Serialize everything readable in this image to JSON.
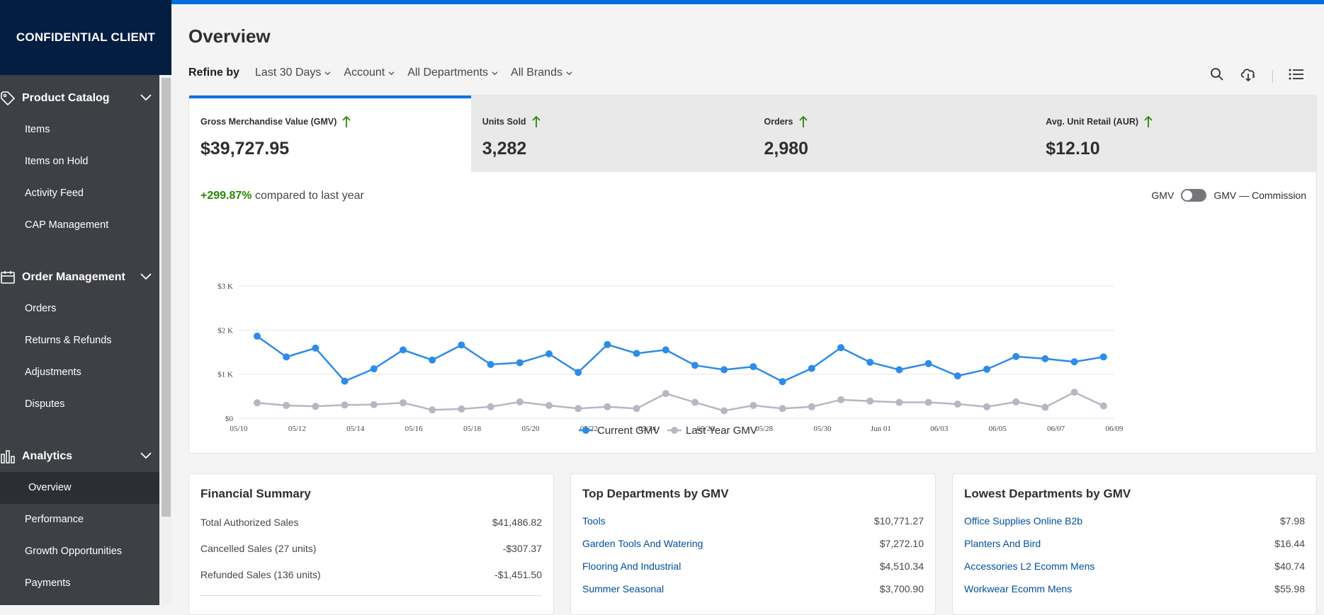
{
  "sidebar": {
    "brand": "CONFIDENTIAL CLIENT",
    "sections": [
      {
        "label": "Product Catalog",
        "icon": "tag-icon",
        "items": [
          "Items",
          "Items on Hold",
          "Activity Feed",
          "CAP Management"
        ]
      },
      {
        "label": "Order Management",
        "icon": "calendar-icon",
        "items": [
          "Orders",
          "Returns & Refunds",
          "Adjustments",
          "Disputes"
        ]
      },
      {
        "label": "Analytics",
        "icon": "bar-chart-icon",
        "items": [
          "Overview",
          "Performance",
          "Growth Opportunities",
          "Payments"
        ],
        "active": "Overview"
      }
    ]
  },
  "header": {
    "title": "Overview",
    "refine_label": "Refine by",
    "filters": [
      "Last 30 Days",
      "Account",
      "All Departments",
      "All Brands"
    ],
    "tools": [
      "search-icon",
      "cloud-download-icon",
      "list-icon"
    ]
  },
  "metrics": [
    {
      "label": "Gross Merchandise Value (GMV)",
      "value": "$39,727.95",
      "trend": "up"
    },
    {
      "label": "Units Sold",
      "value": "3,282",
      "trend": "up"
    },
    {
      "label": "Orders",
      "value": "2,980",
      "trend": "up"
    },
    {
      "label": "Avg. Unit Retail (AUR)",
      "value": "$12.10",
      "trend": "up"
    }
  ],
  "comparison": {
    "pct": "+299.87%",
    "text": "compared to last year"
  },
  "toggle": {
    "left": "GMV",
    "right": "GMV — Commission"
  },
  "chart_data": {
    "type": "line",
    "y_ticks": [
      "$0",
      "$1 K",
      "$2 K",
      "$3 K"
    ],
    "ylim": [
      0,
      3000
    ],
    "x_ticks": [
      "05/10",
      "05/12",
      "05/14",
      "05/16",
      "05/18",
      "05/20",
      "05/22",
      "05/24",
      "05/26",
      "05/28",
      "05/30",
      "Jun 01",
      "06/03",
      "06/05",
      "06/07",
      "06/09"
    ],
    "x": [
      "05/10",
      "05/11",
      "05/12",
      "05/13",
      "05/14",
      "05/15",
      "05/16",
      "05/17",
      "05/18",
      "05/19",
      "05/20",
      "05/21",
      "05/22",
      "05/23",
      "05/24",
      "05/25",
      "05/26",
      "05/27",
      "05/28",
      "05/29",
      "05/30",
      "05/31",
      "Jun 01",
      "06/02",
      "06/03",
      "06/04",
      "06/05",
      "06/06",
      "06/07",
      "06/08"
    ],
    "series": [
      {
        "name": "Current GMV",
        "color": "#2d8ce6",
        "values": [
          1860,
          1390,
          1590,
          840,
          1120,
          1550,
          1320,
          1660,
          1220,
          1260,
          1460,
          1040,
          1670,
          1470,
          1550,
          1200,
          1100,
          1170,
          830,
          1130,
          1600,
          1270,
          1100,
          1240,
          960,
          1110,
          1400,
          1350,
          1280,
          1390
        ]
      },
      {
        "name": "Last Year GMV",
        "color": "#b3b8c2",
        "values": [
          350,
          290,
          270,
          300,
          310,
          350,
          190,
          210,
          260,
          370,
          290,
          220,
          260,
          220,
          560,
          360,
          170,
          290,
          220,
          260,
          420,
          390,
          360,
          360,
          320,
          260,
          370,
          250,
          590,
          280
        ]
      }
    ],
    "grid": true,
    "legend": "bottom-center"
  },
  "financial_summary": {
    "title": "Financial Summary",
    "rows": [
      {
        "label": "Total Authorized Sales",
        "value": "$41,486.82"
      },
      {
        "label": "Cancelled Sales (27 units)",
        "value": "-$307.37"
      },
      {
        "label": "Refunded Sales (136 units)",
        "value": "-$1,451.50"
      }
    ]
  },
  "top_departments": {
    "title": "Top Departments by GMV",
    "rows": [
      {
        "label": "Tools",
        "value": "$10,771.27"
      },
      {
        "label": "Garden Tools And Watering",
        "value": "$7,272.10"
      },
      {
        "label": "Flooring And Industrial",
        "value": "$4,510.34"
      },
      {
        "label": "Summer Seasonal",
        "value": "$3,700.90"
      }
    ]
  },
  "lowest_departments": {
    "title": "Lowest Departments by GMV",
    "rows": [
      {
        "label": "Office Supplies Online B2b",
        "value": "$7.98"
      },
      {
        "label": "Planters And Bird",
        "value": "$16.44"
      },
      {
        "label": "Accessories L2 Ecomm Mens",
        "value": "$40.74"
      },
      {
        "label": "Workwear Ecomm Mens",
        "value": "$55.98"
      }
    ]
  }
}
